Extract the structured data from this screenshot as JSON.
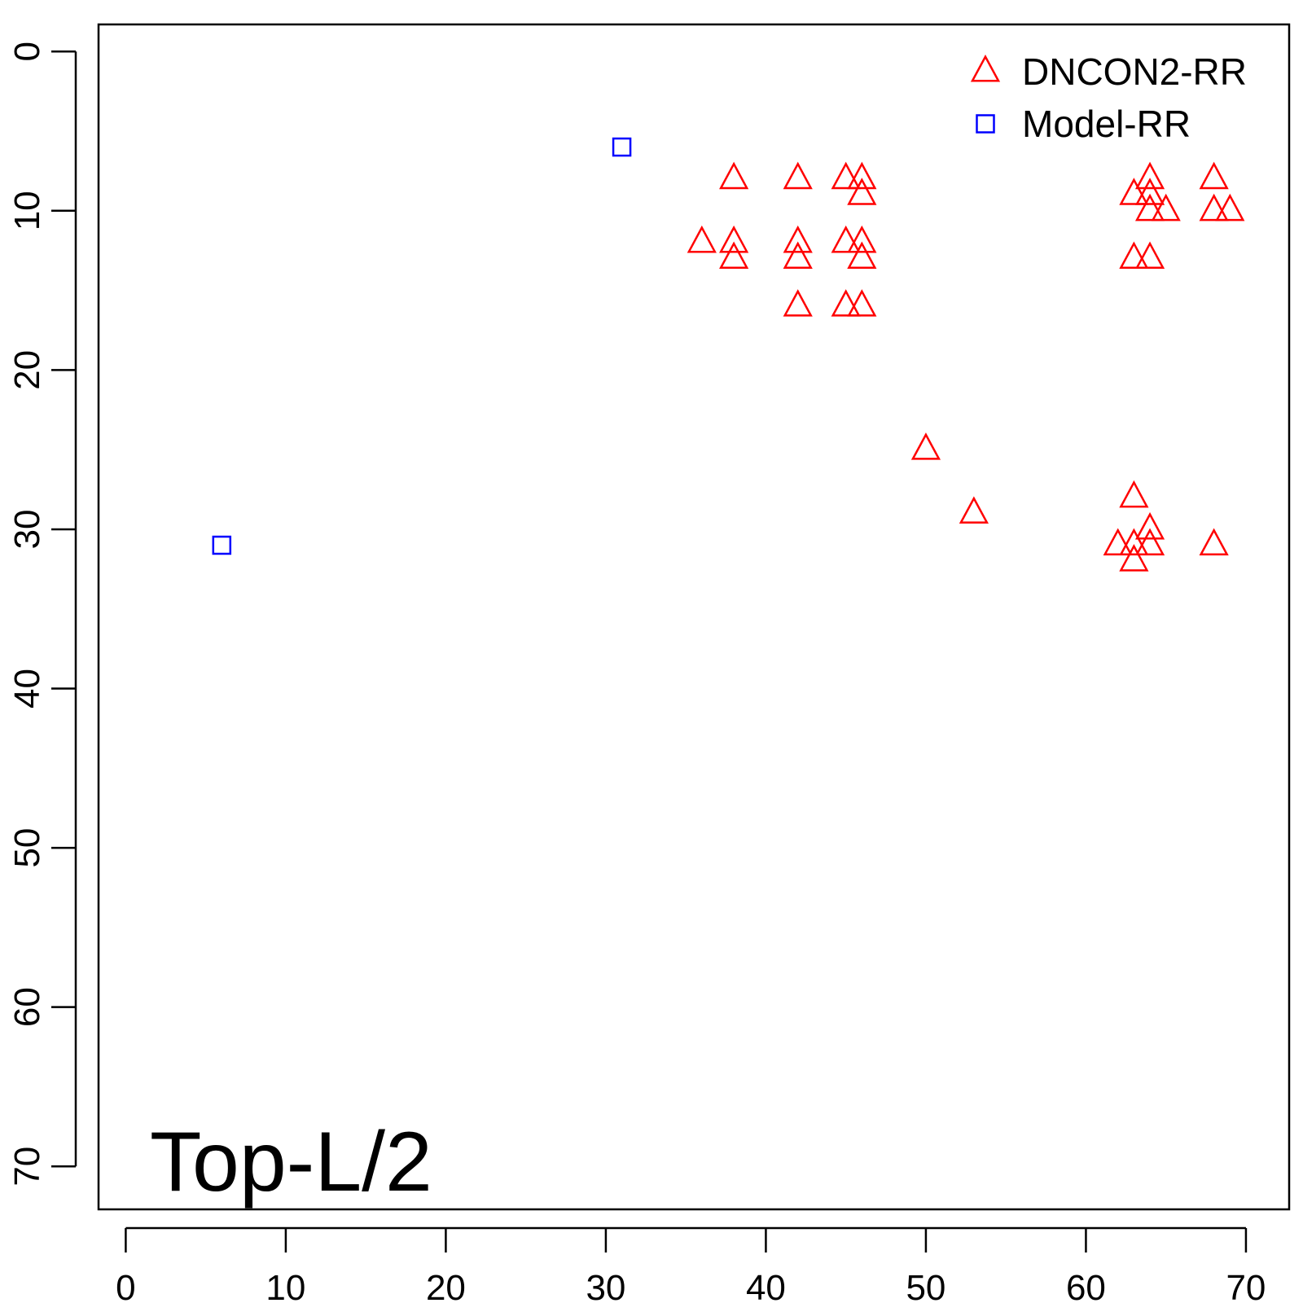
{
  "chart_data": {
    "type": "scatter",
    "title": "",
    "xlabel": "",
    "ylabel": "",
    "annotation": "Top-L/2",
    "xlim": [
      -1.7,
      72.7
    ],
    "ylim": [
      -1.7,
      72.7
    ],
    "y_reversed": true,
    "x_ticks": [
      0,
      10,
      20,
      30,
      40,
      50,
      60,
      70
    ],
    "y_ticks": [
      0,
      10,
      20,
      30,
      40,
      50,
      60,
      70
    ],
    "x_tick_labels": [
      "0",
      "10",
      "20",
      "30",
      "40",
      "50",
      "60",
      "70"
    ],
    "y_tick_labels": [
      "0",
      "10",
      "20",
      "30",
      "40",
      "50",
      "60",
      "70"
    ],
    "grid": false,
    "legend": {
      "position": "top-right"
    },
    "series": [
      {
        "name": "DNCON2-RR",
        "marker": "triangle",
        "color": "#ff0000",
        "points": [
          [
            38,
            8
          ],
          [
            42,
            8
          ],
          [
            45,
            8
          ],
          [
            46,
            8
          ],
          [
            46,
            9
          ],
          [
            36,
            12
          ],
          [
            38,
            12
          ],
          [
            42,
            12
          ],
          [
            45,
            12
          ],
          [
            46,
            12
          ],
          [
            38,
            13
          ],
          [
            42,
            13
          ],
          [
            46,
            13
          ],
          [
            42,
            16
          ],
          [
            45,
            16
          ],
          [
            46,
            16
          ],
          [
            64,
            8
          ],
          [
            68,
            8
          ],
          [
            63,
            9
          ],
          [
            64,
            9
          ],
          [
            64,
            10
          ],
          [
            65,
            10
          ],
          [
            68,
            10
          ],
          [
            69,
            10
          ],
          [
            63,
            13
          ],
          [
            64,
            13
          ],
          [
            50,
            25
          ],
          [
            53,
            29
          ],
          [
            63,
            28
          ],
          [
            64,
            30
          ],
          [
            62,
            31
          ],
          [
            63,
            31
          ],
          [
            64,
            31
          ],
          [
            68,
            31
          ],
          [
            63,
            32
          ]
        ]
      },
      {
        "name": "Model-RR",
        "marker": "square",
        "color": "#0000ff",
        "points": [
          [
            31,
            6
          ],
          [
            6,
            31
          ]
        ]
      }
    ]
  }
}
